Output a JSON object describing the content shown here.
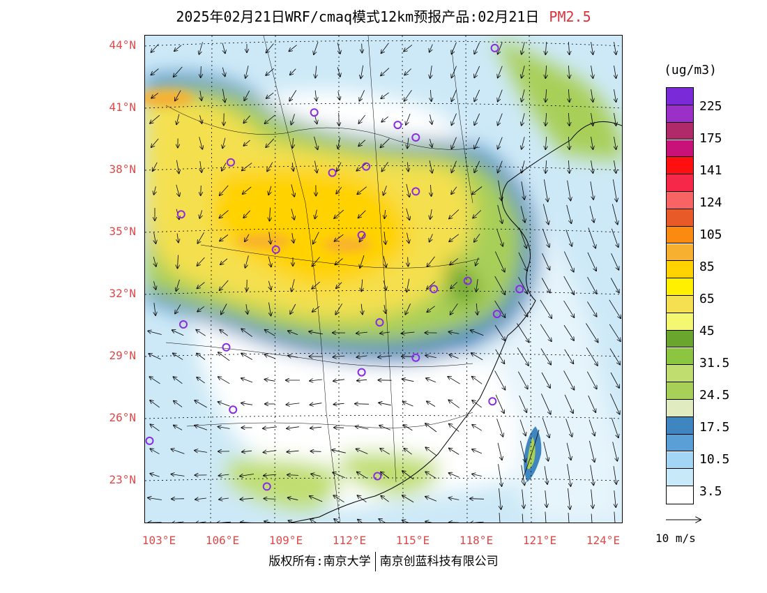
{
  "header": {
    "title": "2025年02月21日WRF/cmaq模式12km预报产品:02月21日",
    "pollutant": "PM2.5"
  },
  "axes": {
    "lat_labels": [
      "44°N",
      "41°N",
      "38°N",
      "35°N",
      "32°N",
      "29°N",
      "26°N",
      "23°N"
    ],
    "lon_labels": [
      "103°E",
      "106°E",
      "109°E",
      "112°E",
      "115°E",
      "118°E",
      "121°E",
      "124°E"
    ]
  },
  "legend": {
    "unit": "(ug/m3)",
    "labels": [
      "225",
      "175",
      "141",
      "124",
      "105",
      "85",
      "65",
      "45",
      "31.5",
      "24.5",
      "17.5",
      "10.5",
      "3.5"
    ],
    "colors": [
      "#7a2ad6",
      "#9a30c8",
      "#b02a6a",
      "#c8127a",
      "#ff1010",
      "#f5284a",
      "#f86464",
      "#e85a28",
      "#fb8a10",
      "#f8b030",
      "#ffd200",
      "#fff000",
      "#f4e050",
      "#f4f870",
      "#6aa52e",
      "#8cc540",
      "#c0de70",
      "#a8cf58",
      "#e0ecc0",
      "#3f86c0",
      "#5a9fd6",
      "#a2d6f4",
      "#c8eaf8",
      "#ffffff"
    ],
    "wind_ref_label": "10 m/s"
  },
  "footer": {
    "copyright": "版权所有:南京大学",
    "company": "南京创蓝科技有限公司"
  },
  "map": {
    "extent": {
      "lon_min": 102.8,
      "lon_max": 124.0,
      "lat_min": 21.0,
      "lat_max": 44.5
    },
    "cities": [
      {
        "lon": 118.3,
        "lat": 43.9
      },
      {
        "lon": 110.3,
        "lat": 40.8
      },
      {
        "lon": 114.0,
        "lat": 40.2
      },
      {
        "lon": 114.8,
        "lat": 39.6
      },
      {
        "lon": 106.6,
        "lat": 38.4
      },
      {
        "lon": 111.1,
        "lat": 37.9
      },
      {
        "lon": 112.6,
        "lat": 38.2
      },
      {
        "lon": 114.8,
        "lat": 37.0
      },
      {
        "lon": 104.4,
        "lat": 35.9
      },
      {
        "lon": 112.4,
        "lat": 34.9
      },
      {
        "lon": 108.6,
        "lat": 34.2
      },
      {
        "lon": 115.6,
        "lat": 32.3
      },
      {
        "lon": 117.1,
        "lat": 32.7
      },
      {
        "lon": 119.4,
        "lat": 32.3
      },
      {
        "lon": 118.4,
        "lat": 31.1
      },
      {
        "lon": 104.5,
        "lat": 30.6
      },
      {
        "lon": 113.2,
        "lat": 30.7
      },
      {
        "lon": 106.4,
        "lat": 29.5
      },
      {
        "lon": 114.8,
        "lat": 29.0
      },
      {
        "lon": 112.4,
        "lat": 28.3
      },
      {
        "lon": 106.7,
        "lat": 26.5
      },
      {
        "lon": 118.2,
        "lat": 26.9
      },
      {
        "lon": 103.0,
        "lat": 25.0
      },
      {
        "lon": 108.2,
        "lat": 22.8
      },
      {
        "lon": 113.1,
        "lat": 23.3
      }
    ]
  }
}
